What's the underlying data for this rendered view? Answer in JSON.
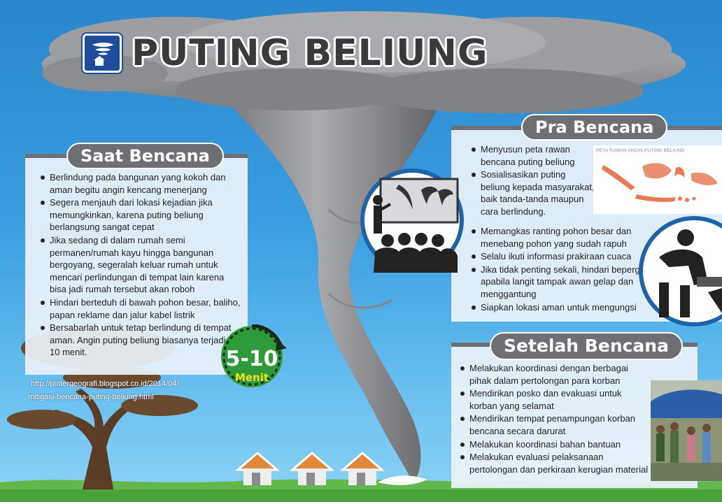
{
  "title": "PUTING BELIUNG",
  "saat": {
    "heading": "Saat Bencana",
    "items": [
      "Berlindung pada bangunan yang kokoh dan aman begitu angin kencang menerjang",
      "Segera menjauh dari lokasi kejadian jika memungkinkan, karena puting beliung berlangsung sangat cepat",
      "Jika sedang di dalam rumah semi permanen/rumah kayu hingga bangunan bergoyang, segeralah keluar rumah untuk mencari perlindungan di tempat lain karena bisa jadi rumah tersebut akan roboh",
      "Hindari berteduh di bawah pohon besar, baliho, papan reklame dan jalur kabel listrik",
      "Bersabarlah untuk tetap berlindung di tempat aman. Angin puting beliung biasanya terjadi 5-10 menit."
    ]
  },
  "pra": {
    "heading": "Pra Bencana",
    "items_top": [
      "Menyusun peta rawan bencana puting beliung",
      "Sosialisasikan puting beliung kepada masyarakat, baik tanda-tanda maupun cara berlindung."
    ],
    "items_bottom": [
      "Memangkas ranting pohon besar dan menebang pohon yang sudah rapuh",
      "Selalu ikuti informasi prakiraan cuaca",
      "Jika tidak penting sekali, hindari bepergian apabila langit tampak awan gelap dan menggantung",
      "Siapkan lokasi aman untuk mengungsi"
    ],
    "map_title": "PETA RAWAN ANGIN PUTING BELIUNG"
  },
  "setelah": {
    "heading": "Setelah Bencana",
    "items": [
      "Melakukan koordinasi dengan berbagai pihak dalam pertolongan para korban",
      "Mendirikan posko dan evakuasi untuk korban yang selamat",
      "Mendirikan tempat penampungan korban bencana secara darurat",
      "Melakukan koordinasi bahan bantuan",
      "Melakukan evaluasi pelaksanaan pertolongan dan perkiraan kerugian material"
    ]
  },
  "timer": {
    "value": "5-10",
    "unit": "Menit"
  },
  "source": {
    "line1": "http://pintergeografi.blogspot.co.id/2014/04/",
    "line2": "mitigasi-bencana-puting-beliung.html"
  },
  "colors": {
    "sky_top": "#2b86cc",
    "cloud": "#8f9194",
    "panel_header": "#6d6f73",
    "timer_green": "#2f9a3a",
    "timer_text_accent": "#f2e21a",
    "house_roof": "#e2873a",
    "logo_blue": "#1e4d9b"
  }
}
